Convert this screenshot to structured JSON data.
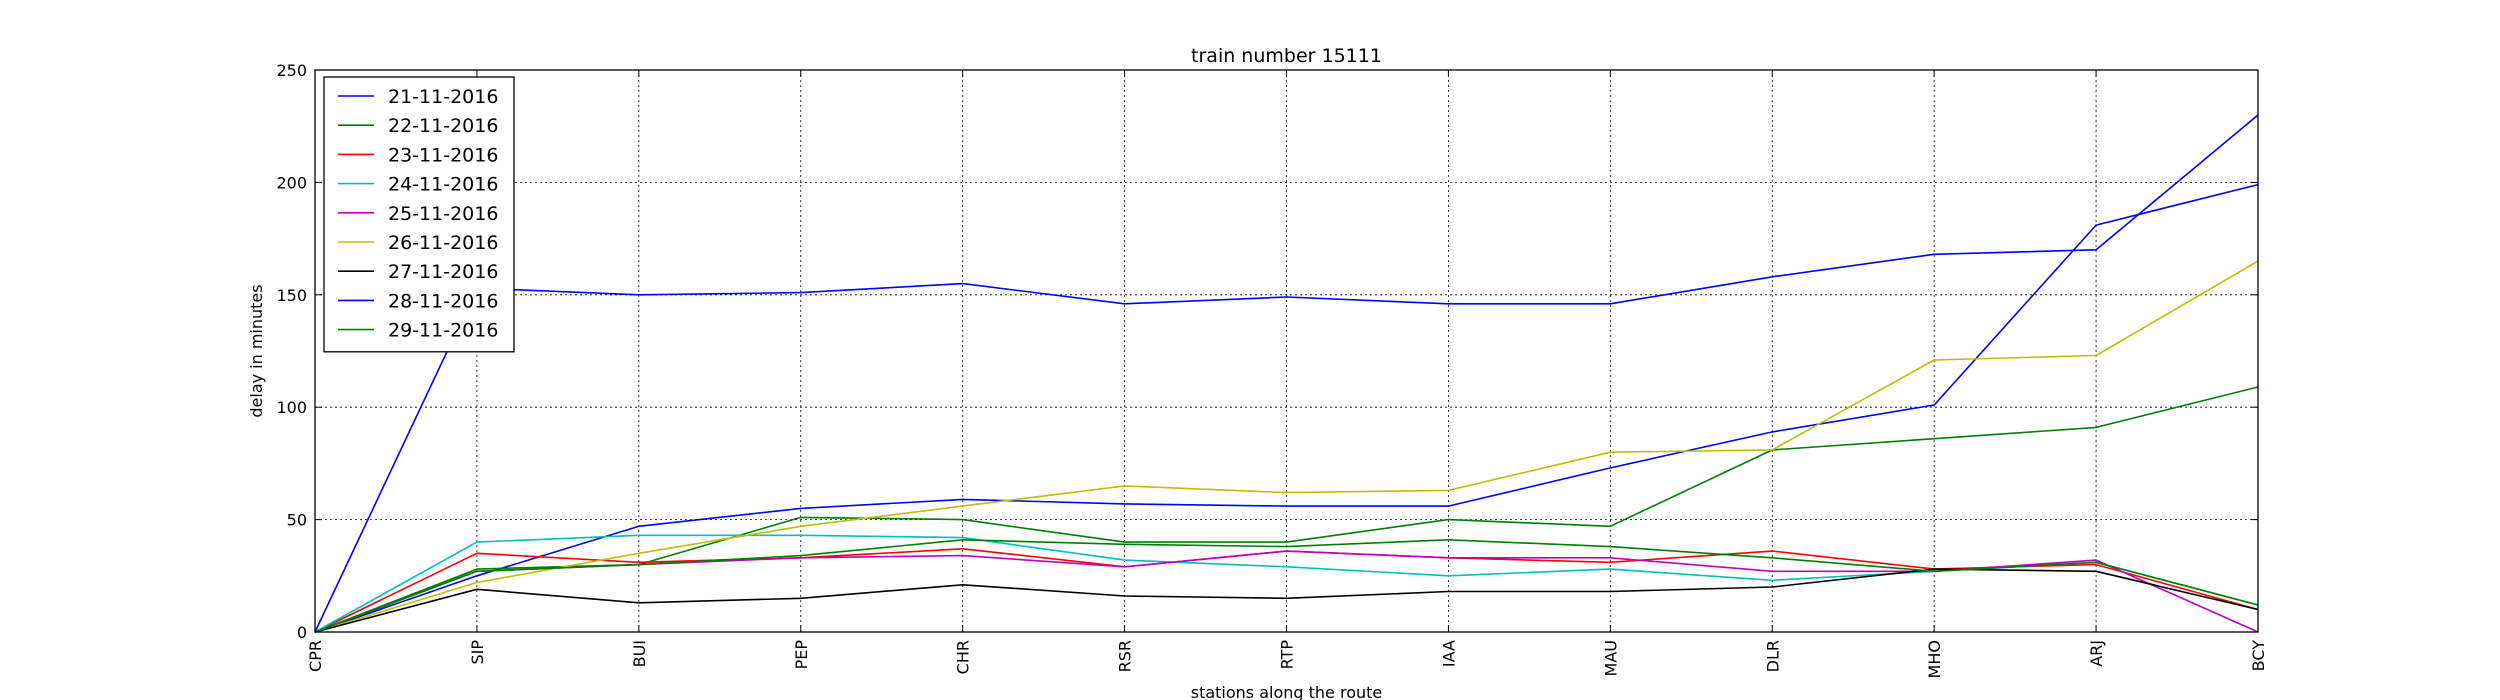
{
  "chart_data": {
    "type": "line",
    "title": "train number 15111",
    "xlabel": "stations along the route",
    "ylabel": "delay in minutes",
    "categories": [
      "CPR",
      "SIP",
      "BUI",
      "PEP",
      "CHR",
      "RSR",
      "RTP",
      "IAA",
      "MAU",
      "DLR",
      "MHO",
      "ARJ",
      "BCY"
    ],
    "ylim": [
      0,
      250
    ],
    "yticks": [
      0,
      50,
      100,
      150,
      200,
      250
    ],
    "grid": true,
    "legend_position": "top-left",
    "series": [
      {
        "name": "21-11-2016",
        "color": "#0000ff",
        "values": [
          0,
          25,
          47,
          55,
          59,
          57,
          56,
          56,
          73,
          89,
          101,
          181,
          199
        ]
      },
      {
        "name": "22-11-2016",
        "color": "#008000",
        "values": [
          0,
          28,
          30,
          51,
          50,
          40,
          40,
          50,
          47,
          81,
          86,
          91,
          109
        ]
      },
      {
        "name": "23-11-2016",
        "color": "#ff0000",
        "values": [
          0,
          35,
          31,
          33,
          37,
          29,
          36,
          33,
          31,
          36,
          28,
          30,
          10
        ]
      },
      {
        "name": "24-11-2016",
        "color": "#00bfbf",
        "values": [
          0,
          40,
          43,
          43,
          42,
          32,
          29,
          25,
          28,
          23,
          27,
          31,
          12
        ]
      },
      {
        "name": "25-11-2016",
        "color": "#bf00bf",
        "values": [
          0,
          27,
          30,
          33,
          34,
          29,
          36,
          33,
          33,
          27,
          27,
          32,
          0
        ]
      },
      {
        "name": "26-11-2016",
        "color": "#bfbf00",
        "values": [
          0,
          22,
          35,
          47,
          56,
          65,
          62,
          63,
          80,
          81,
          121,
          123,
          165
        ]
      },
      {
        "name": "27-11-2016",
        "color": "#000000",
        "values": [
          0,
          19,
          13,
          15,
          21,
          16,
          15,
          18,
          18,
          20,
          28,
          27,
          10
        ]
      },
      {
        "name": "28-11-2016",
        "color": "#0000ff",
        "values": [
          0,
          153,
          150,
          151,
          155,
          146,
          149,
          146,
          146,
          158,
          168,
          170,
          230
        ]
      },
      {
        "name": "29-11-2016",
        "color": "#008000",
        "values": [
          0,
          27,
          30,
          34,
          41,
          39,
          38,
          41,
          38,
          33,
          27,
          31,
          12
        ]
      }
    ]
  }
}
